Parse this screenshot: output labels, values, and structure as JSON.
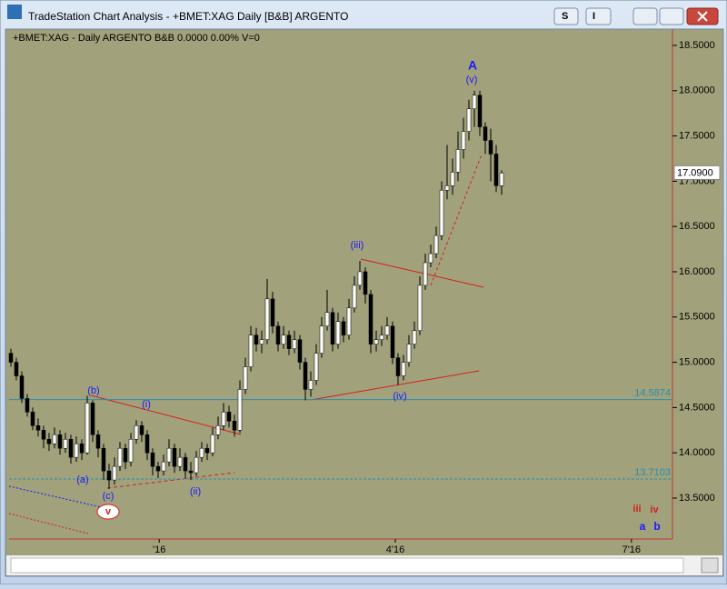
{
  "window": {
    "title": "TradeStation Chart Analysis - +BMET:XAG Daily [B&B] ARGENTO",
    "buttons": [
      "S",
      "I"
    ]
  },
  "chart_data": {
    "type": "candlestick",
    "header": "+BMET:XAG - Daily  ARGENTO  B&B  0.0000  0.00%  V=0",
    "open": [
      15.1,
      15.0,
      14.85,
      14.6,
      14.45,
      14.3,
      14.25,
      14.15,
      14.1,
      14.2,
      14.05,
      14.15,
      13.95,
      14.1,
      14.0,
      14.55,
      14.2,
      14.05,
      13.8,
      13.7,
      13.85,
      14.05,
      13.9,
      14.15,
      14.3,
      14.2,
      14.0,
      13.85,
      13.8,
      13.9,
      14.05,
      13.85,
      13.95,
      13.8,
      13.78,
      13.95,
      14.05,
      14.0,
      14.2,
      14.3,
      14.45,
      14.35,
      14.25,
      14.7,
      14.95,
      15.3,
      15.2,
      15.25,
      15.7,
      15.4,
      15.2,
      15.3,
      15.15,
      15.25,
      15.0,
      14.7,
      14.8,
      15.1,
      15.4,
      15.55,
      15.2,
      15.45,
      15.3,
      15.6,
      15.85,
      16.0,
      15.75,
      15.2,
      15.25,
      15.3,
      15.4,
      15.05,
      14.85,
      15.0,
      15.2,
      15.35,
      15.85,
      16.1,
      16.2,
      16.4,
      16.9,
      16.95,
      17.1,
      17.35,
      17.55,
      17.8,
      17.95,
      17.6,
      17.45,
      17.3,
      16.95
    ],
    "high": [
      15.15,
      15.05,
      14.9,
      14.65,
      14.5,
      14.38,
      14.3,
      14.22,
      14.28,
      14.25,
      14.22,
      14.2,
      14.18,
      14.15,
      14.63,
      14.58,
      14.25,
      14.1,
      13.88,
      13.95,
      14.12,
      14.1,
      14.22,
      14.36,
      14.35,
      14.25,
      14.05,
      13.9,
      13.98,
      14.15,
      14.1,
      14.05,
      14.0,
      13.9,
      14.02,
      14.12,
      14.1,
      14.28,
      14.4,
      14.55,
      14.52,
      14.42,
      14.8,
      15.05,
      15.4,
      15.38,
      15.35,
      15.92,
      15.78,
      15.45,
      15.4,
      15.35,
      15.35,
      15.3,
      15.05,
      14.9,
      15.2,
      15.5,
      15.8,
      15.6,
      15.55,
      15.5,
      15.7,
      15.95,
      16.12,
      16.05,
      15.8,
      15.35,
      15.4,
      15.5,
      15.45,
      15.1,
      15.08,
      15.3,
      15.45,
      15.95,
      16.2,
      16.3,
      16.5,
      17.0,
      17.4,
      17.25,
      17.55,
      17.7,
      17.9,
      18.0,
      18.0,
      17.65,
      17.58,
      17.4,
      17.12
    ],
    "low": [
      14.95,
      14.8,
      14.55,
      14.4,
      14.25,
      14.18,
      14.05,
      14.02,
      14.05,
      13.98,
      14.0,
      13.88,
      13.9,
      13.92,
      13.98,
      14.12,
      13.95,
      13.7,
      13.6,
      13.65,
      13.8,
      13.82,
      13.85,
      14.1,
      14.12,
      13.92,
      13.75,
      13.72,
      13.75,
      13.85,
      13.78,
      13.8,
      13.72,
      13.7,
      13.74,
      13.9,
      13.92,
      13.96,
      14.15,
      14.25,
      14.28,
      14.18,
      14.22,
      14.65,
      14.9,
      15.12,
      15.1,
      15.2,
      15.32,
      15.12,
      15.15,
      15.08,
      15.1,
      14.92,
      14.58,
      14.62,
      14.75,
      15.05,
      15.35,
      15.12,
      15.15,
      15.22,
      15.25,
      15.55,
      15.8,
      15.65,
      15.1,
      15.12,
      15.18,
      15.25,
      14.98,
      14.75,
      14.8,
      14.95,
      15.15,
      15.3,
      15.8,
      16.05,
      16.15,
      16.35,
      16.8,
      16.85,
      17.0,
      17.25,
      17.45,
      17.6,
      17.5,
      17.3,
      17.0,
      16.88,
      16.85
    ],
    "close": [
      15.0,
      14.85,
      14.6,
      14.45,
      14.3,
      14.25,
      14.15,
      14.1,
      14.2,
      14.05,
      14.15,
      13.95,
      14.1,
      14.0,
      14.55,
      14.2,
      14.05,
      13.8,
      13.7,
      13.85,
      14.05,
      13.9,
      14.15,
      14.3,
      14.2,
      14.0,
      13.85,
      13.8,
      13.9,
      14.05,
      13.85,
      13.95,
      13.8,
      13.78,
      13.95,
      14.05,
      14.0,
      14.2,
      14.3,
      14.45,
      14.35,
      14.25,
      14.7,
      14.95,
      15.3,
      15.2,
      15.25,
      15.7,
      15.4,
      15.2,
      15.3,
      15.15,
      15.25,
      15.0,
      14.7,
      14.8,
      15.1,
      15.4,
      15.55,
      15.2,
      15.45,
      15.3,
      15.6,
      15.85,
      16.0,
      15.75,
      15.2,
      15.25,
      15.3,
      15.4,
      15.05,
      14.85,
      15.0,
      15.2,
      15.35,
      15.85,
      16.1,
      16.2,
      16.4,
      16.9,
      16.95,
      17.1,
      17.35,
      17.55,
      17.8,
      17.95,
      17.6,
      17.45,
      17.3,
      16.95,
      17.09
    ],
    "up_color": "#ffffff",
    "down_color": "#000000",
    "xlim": [
      -0.33,
      121.33
    ],
    "xticks": [
      {
        "value": 27.2,
        "label": "'16"
      },
      {
        "value": 70.5,
        "label": "4'16"
      },
      {
        "value": 113.8,
        "label": "7'16"
      }
    ],
    "ylim": [
      13.048,
      18.62
    ],
    "yticks": [
      {
        "value": 13.5,
        "label": "13.5000"
      },
      {
        "value": 14,
        "label": "14.0000"
      },
      {
        "value": 14.5,
        "label": "14.5000"
      },
      {
        "value": 15,
        "label": "15.0000"
      },
      {
        "value": 15.5,
        "label": "15.5000"
      },
      {
        "value": 16,
        "label": "16.0000"
      },
      {
        "value": 16.5,
        "label": "16.5000"
      },
      {
        "value": 17,
        "label": "17.0000"
      },
      {
        "value": 17.5,
        "label": "17.5000"
      },
      {
        "value": 18,
        "label": "18.0000"
      },
      {
        "value": 18.5,
        "label": "18.5000"
      }
    ],
    "last_price": {
      "value": 17.09,
      "label": "17.0900"
    },
    "price_lines": [
      14.5874,
      13.7103
    ],
    "wave_labels": [
      "A",
      "(v)",
      "(iii)",
      "(iv)",
      "(b)",
      "(i)",
      "(a)",
      "(c)",
      "(ii)",
      "v",
      "iii",
      "iv",
      "a",
      "b"
    ]
  }
}
